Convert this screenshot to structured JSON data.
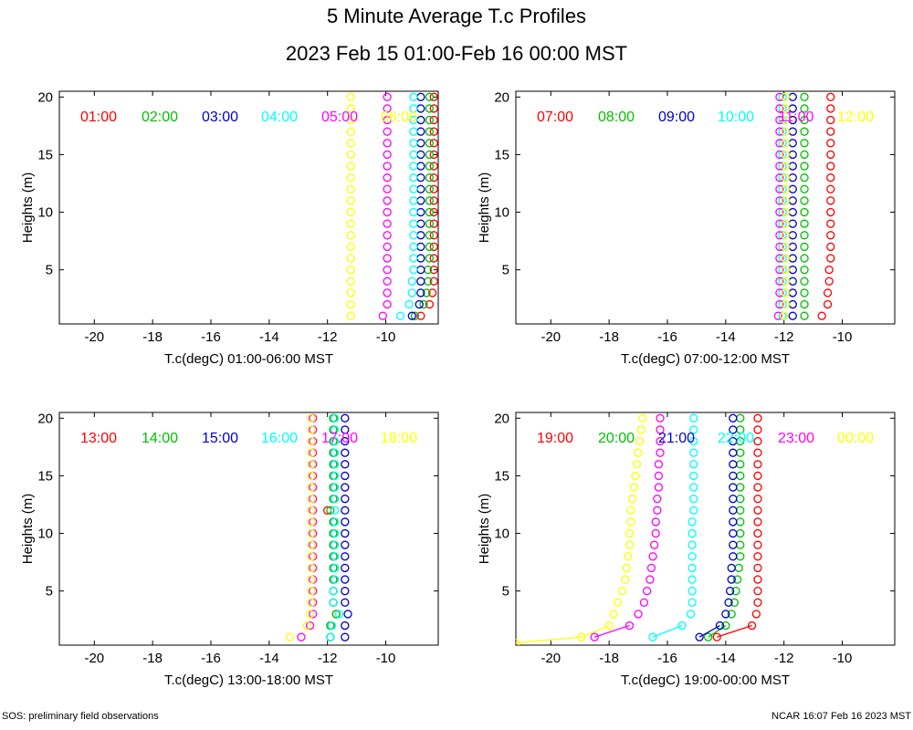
{
  "title": "5 Minute Average T.c Profiles",
  "subtitle": "2023 Feb 15 01:00-Feb 16 00:00 MST",
  "footer_left": "SOS: preliminary field observations",
  "footer_right": "NCAR 16:07 Feb 16 2023 MST",
  "chart_data": [
    {
      "type": "scatter",
      "xlabel": "T.c(degC) 01:00-06:00 MST",
      "ylabel": "Heights (m)",
      "xlim": [
        -21.2,
        -8.2
      ],
      "ylim": [
        0.3,
        20.5
      ],
      "xticks": [
        -20,
        -18,
        -16,
        -14,
        -12,
        -10
      ],
      "yticks": [
        5,
        10,
        15,
        20
      ],
      "heights": [
        1,
        2,
        3,
        4,
        5,
        6,
        7,
        8,
        9,
        10,
        11,
        12,
        13,
        14,
        15,
        16,
        17,
        18,
        19,
        20
      ],
      "series": [
        {
          "name": "01:00",
          "color": "#ff0000",
          "values": [
            -8.8,
            -8.5,
            -8.4,
            -8.35,
            -8.35,
            -8.35,
            -8.35,
            -8.35,
            -8.35,
            -8.35,
            -8.35,
            -8.35,
            -8.35,
            -8.35,
            -8.35,
            -8.35,
            -8.35,
            -8.35,
            -8.35,
            -8.35
          ]
        },
        {
          "name": "02:00",
          "color": "#00c000",
          "values": [
            -9.0,
            -8.7,
            -8.6,
            -8.55,
            -8.55,
            -8.5,
            -8.5,
            -8.5,
            -8.5,
            -8.5,
            -8.5,
            -8.5,
            -8.5,
            -8.5,
            -8.5,
            -8.5,
            -8.5,
            -8.5,
            -8.5,
            -8.5
          ]
        },
        {
          "name": "03:00",
          "color": "#0000cc",
          "values": [
            -9.1,
            -8.85,
            -8.8,
            -8.8,
            -8.8,
            -8.8,
            -8.8,
            -8.8,
            -8.8,
            -8.8,
            -8.8,
            -8.8,
            -8.8,
            -8.8,
            -8.8,
            -8.8,
            -8.8,
            -8.8,
            -8.8,
            -8.8
          ]
        },
        {
          "name": "04:00",
          "color": "#00ffff",
          "values": [
            -9.5,
            -9.2,
            -9.1,
            -9.1,
            -9.05,
            -9.05,
            -9.05,
            -9.05,
            -9.05,
            -9.05,
            -9.05,
            -9.05,
            -9.05,
            -9.05,
            -9.05,
            -9.05,
            -9.05,
            -9.05,
            -9.05,
            -9.05
          ]
        },
        {
          "name": "05:00",
          "color": "#ff00ff",
          "values": [
            -10.1,
            -9.95,
            -9.95,
            -9.95,
            -9.95,
            -9.95,
            -9.95,
            -9.95,
            -9.95,
            -9.95,
            -9.95,
            -9.95,
            -9.95,
            -9.95,
            -9.95,
            -9.95,
            -9.95,
            -9.95,
            -9.95,
            -9.95
          ]
        },
        {
          "name": "06:00",
          "color": "#ffff00",
          "values": [
            -11.2,
            -11.2,
            -11.2,
            -11.2,
            -11.2,
            -11.2,
            -11.2,
            -11.2,
            -11.2,
            -11.2,
            -11.2,
            -11.2,
            -11.2,
            -11.2,
            -11.2,
            -11.2,
            -11.2,
            -11.2,
            -11.2,
            -11.2
          ]
        }
      ]
    },
    {
      "type": "scatter",
      "xlabel": "T.c(degC) 07:00-12:00 MST",
      "ylabel": "Heights (m)",
      "xlim": [
        -21.2,
        -8.2
      ],
      "ylim": [
        0.3,
        20.5
      ],
      "xticks": [
        -20,
        -18,
        -16,
        -14,
        -12,
        -10
      ],
      "yticks": [
        5,
        10,
        15,
        20
      ],
      "heights": [
        1,
        2,
        3,
        4,
        5,
        6,
        7,
        8,
        9,
        10,
        11,
        12,
        13,
        14,
        15,
        16,
        17,
        18,
        19,
        20
      ],
      "series": [
        {
          "name": "07:00",
          "color": "#ff0000",
          "values": [
            -10.7,
            -10.5,
            -10.5,
            -10.45,
            -10.45,
            -10.4,
            -10.4,
            -10.4,
            -10.4,
            -10.4,
            -10.4,
            -10.4,
            -10.4,
            -10.4,
            -10.4,
            -10.4,
            -10.4,
            -10.4,
            -10.4,
            -10.4
          ]
        },
        {
          "name": "08:00",
          "color": "#00c000",
          "values": [
            -11.3,
            -11.3,
            -11.3,
            -11.3,
            -11.3,
            -11.3,
            -11.3,
            -11.3,
            -11.3,
            -11.3,
            -11.3,
            -11.3,
            -11.3,
            -11.3,
            -11.3,
            -11.3,
            -11.3,
            -11.3,
            -11.3,
            -11.3
          ]
        },
        {
          "name": "09:00",
          "color": "#0000cc",
          "values": [
            -11.7,
            -11.7,
            -11.7,
            -11.7,
            -11.7,
            -11.7,
            -11.7,
            -11.7,
            -11.7,
            -11.7,
            -11.7,
            -11.7,
            -11.7,
            -11.7,
            -11.7,
            -11.7,
            -11.7,
            -11.7,
            -11.7,
            -11.7
          ]
        },
        {
          "name": "10:00",
          "color": "#00ffff",
          "values": [
            -12.05,
            -12.05,
            -12.05,
            -12.05,
            -12.05,
            -12.05,
            -12.05,
            -12.05,
            -12.05,
            -12.05,
            -12.05,
            -12.05,
            -12.05,
            -12.05,
            -12.05,
            -12.05,
            -12.05,
            -12.05,
            -12.05,
            -12.05
          ]
        },
        {
          "name": "11:00",
          "color": "#ff00ff",
          "values": [
            -12.2,
            -12.15,
            -12.15,
            -12.15,
            -12.15,
            -12.15,
            -12.15,
            -12.15,
            -12.15,
            -12.15,
            -12.15,
            -12.15,
            -12.15,
            -12.15,
            -12.15,
            -12.15,
            -12.15,
            -12.15,
            -12.15,
            -12.15
          ]
        },
        {
          "name": "12:00",
          "color": "#ffff00",
          "values": [
            -12.0,
            -11.95,
            -11.95,
            -11.95,
            -11.95,
            -11.95,
            -11.95,
            -11.95,
            -11.95,
            -11.95,
            -11.95,
            -11.95,
            -11.95,
            -11.95,
            -11.95,
            -11.95,
            -11.95,
            -11.95,
            -11.95,
            -11.95
          ]
        }
      ]
    },
    {
      "type": "scatter",
      "xlabel": "T.c(degC) 13:00-18:00 MST",
      "ylabel": "Heights (m)",
      "xlim": [
        -21.2,
        -8.2
      ],
      "ylim": [
        0.3,
        20.5
      ],
      "xticks": [
        -20,
        -18,
        -16,
        -14,
        -12,
        -10
      ],
      "yticks": [
        5,
        10,
        15,
        20
      ],
      "heights": [
        1,
        2,
        3,
        4,
        5,
        6,
        7,
        8,
        9,
        10,
        11,
        12,
        13,
        14,
        15,
        16,
        17,
        18,
        19,
        20
      ],
      "series": [
        {
          "name": "13:00",
          "color": "#ff0000",
          "values": [
            -11.9,
            -11.9,
            -11.7,
            -11.8,
            -11.8,
            -11.8,
            -11.8,
            -11.8,
            -11.8,
            -11.8,
            -11.8,
            -12.0,
            -11.8,
            -11.8,
            -11.8,
            -11.8,
            -11.8,
            -11.8,
            -11.8,
            -11.8
          ]
        },
        {
          "name": "14:00",
          "color": "#00c000",
          "values": [
            -11.9,
            -11.9,
            -11.7,
            -11.8,
            -11.8,
            -11.8,
            -11.8,
            -11.8,
            -11.8,
            -11.8,
            -11.8,
            -11.9,
            -11.8,
            -11.8,
            -11.8,
            -11.8,
            -11.8,
            -11.8,
            -11.8,
            -11.8
          ]
        },
        {
          "name": "15:00",
          "color": "#0000cc",
          "values": [
            -11.4,
            -11.4,
            -11.3,
            -11.4,
            -11.4,
            -11.4,
            -11.4,
            -11.4,
            -11.4,
            -11.4,
            -11.4,
            -11.4,
            -11.4,
            -11.4,
            -11.4,
            -11.4,
            -11.4,
            -11.4,
            -11.4,
            -11.4
          ]
        },
        {
          "name": "16:00",
          "color": "#00ffff",
          "values": [
            -11.9,
            -11.85,
            -11.6,
            -11.8,
            -11.8,
            -11.75,
            -11.75,
            -11.75,
            -11.75,
            -11.75,
            -11.75,
            -11.75,
            -11.75,
            -11.75,
            -11.75,
            -11.75,
            -11.75,
            -11.75,
            -11.75,
            -11.75
          ]
        },
        {
          "name": "17:00",
          "color": "#ff00ff",
          "values": [
            -12.9,
            -12.6,
            -12.5,
            -12.5,
            -12.5,
            -12.5,
            -12.5,
            -12.5,
            -12.5,
            -12.5,
            -12.5,
            -12.5,
            -12.5,
            -12.5,
            -12.5,
            -12.5,
            -12.5,
            -12.5,
            -12.5,
            -12.5
          ]
        },
        {
          "name": "18:00",
          "color": "#ffff00",
          "values": [
            -13.3,
            -12.7,
            -12.6,
            -12.55,
            -12.55,
            -12.55,
            -12.55,
            -12.55,
            -12.55,
            -12.55,
            -12.55,
            -12.55,
            -12.55,
            -12.55,
            -12.55,
            -12.55,
            -12.55,
            -12.55,
            -12.55,
            -12.55
          ]
        }
      ]
    },
    {
      "type": "scatter",
      "xlabel": "T.c(degC) 19:00-00:00 MST",
      "ylabel": "Heights (m)",
      "xlim": [
        -21.2,
        -8.2
      ],
      "ylim": [
        0.3,
        20.5
      ],
      "xticks": [
        -20,
        -18,
        -16,
        -14,
        -12,
        -10
      ],
      "yticks": [
        5,
        10,
        15,
        20
      ],
      "heights": [
        0.5,
        1,
        2,
        3,
        4,
        5,
        6,
        7,
        8,
        9,
        10,
        11,
        12,
        13,
        14,
        15,
        16,
        17,
        18,
        19,
        20
      ],
      "series": [
        {
          "name": "19:00",
          "color": "#ff0000",
          "values": [
            null,
            -14.3,
            -13.1,
            -12.95,
            -12.9,
            -12.9,
            -12.9,
            -12.9,
            -12.9,
            -12.9,
            -12.9,
            -12.9,
            -12.9,
            -12.9,
            -12.9,
            -12.9,
            -12.9,
            -12.9,
            -12.9,
            -12.9,
            -12.9
          ]
        },
        {
          "name": "20:00",
          "color": "#00c000",
          "values": [
            null,
            -14.6,
            -14.0,
            -13.8,
            -13.7,
            -13.65,
            -13.6,
            -13.55,
            -13.5,
            -13.5,
            -13.5,
            -13.5,
            -13.5,
            -13.5,
            -13.5,
            -13.5,
            -13.5,
            -13.5,
            -13.5,
            -13.5,
            -13.5
          ]
        },
        {
          "name": "21:00",
          "color": "#0000cc",
          "values": [
            null,
            -14.9,
            -14.2,
            -14.0,
            -13.9,
            -13.85,
            -13.8,
            -13.8,
            -13.75,
            -13.75,
            -13.75,
            -13.75,
            -13.75,
            -13.75,
            -13.75,
            -13.75,
            -13.75,
            -13.75,
            -13.75,
            -13.75,
            -13.75
          ]
        },
        {
          "name": "22:00",
          "color": "#00ffff",
          "values": [
            null,
            -16.5,
            -15.5,
            -15.2,
            -15.15,
            -15.15,
            -15.15,
            -15.15,
            -15.15,
            -15.15,
            -15.15,
            -15.15,
            -15.1,
            -15.1,
            -15.1,
            -15.1,
            -15.1,
            -15.1,
            -15.1,
            -15.1,
            -15.1
          ]
        },
        {
          "name": "23:00",
          "color": "#ff00ff",
          "values": [
            null,
            -18.5,
            -17.3,
            -17.0,
            -16.8,
            -16.7,
            -16.6,
            -16.55,
            -16.5,
            -16.45,
            -16.4,
            -16.4,
            -16.35,
            -16.35,
            -16.3,
            -16.3,
            -16.3,
            -16.25,
            -16.25,
            -16.25,
            -16.25
          ]
        },
        {
          "name": "00:00",
          "color": "#ffff00",
          "values": [
            -21.2,
            -18.95,
            -18.0,
            -17.85,
            -17.7,
            -17.55,
            -17.45,
            -17.4,
            -17.35,
            -17.3,
            -17.3,
            -17.25,
            -17.25,
            -17.2,
            -17.15,
            -17.1,
            -17.05,
            -17.0,
            -16.95,
            -16.9,
            -16.85
          ]
        }
      ]
    }
  ]
}
